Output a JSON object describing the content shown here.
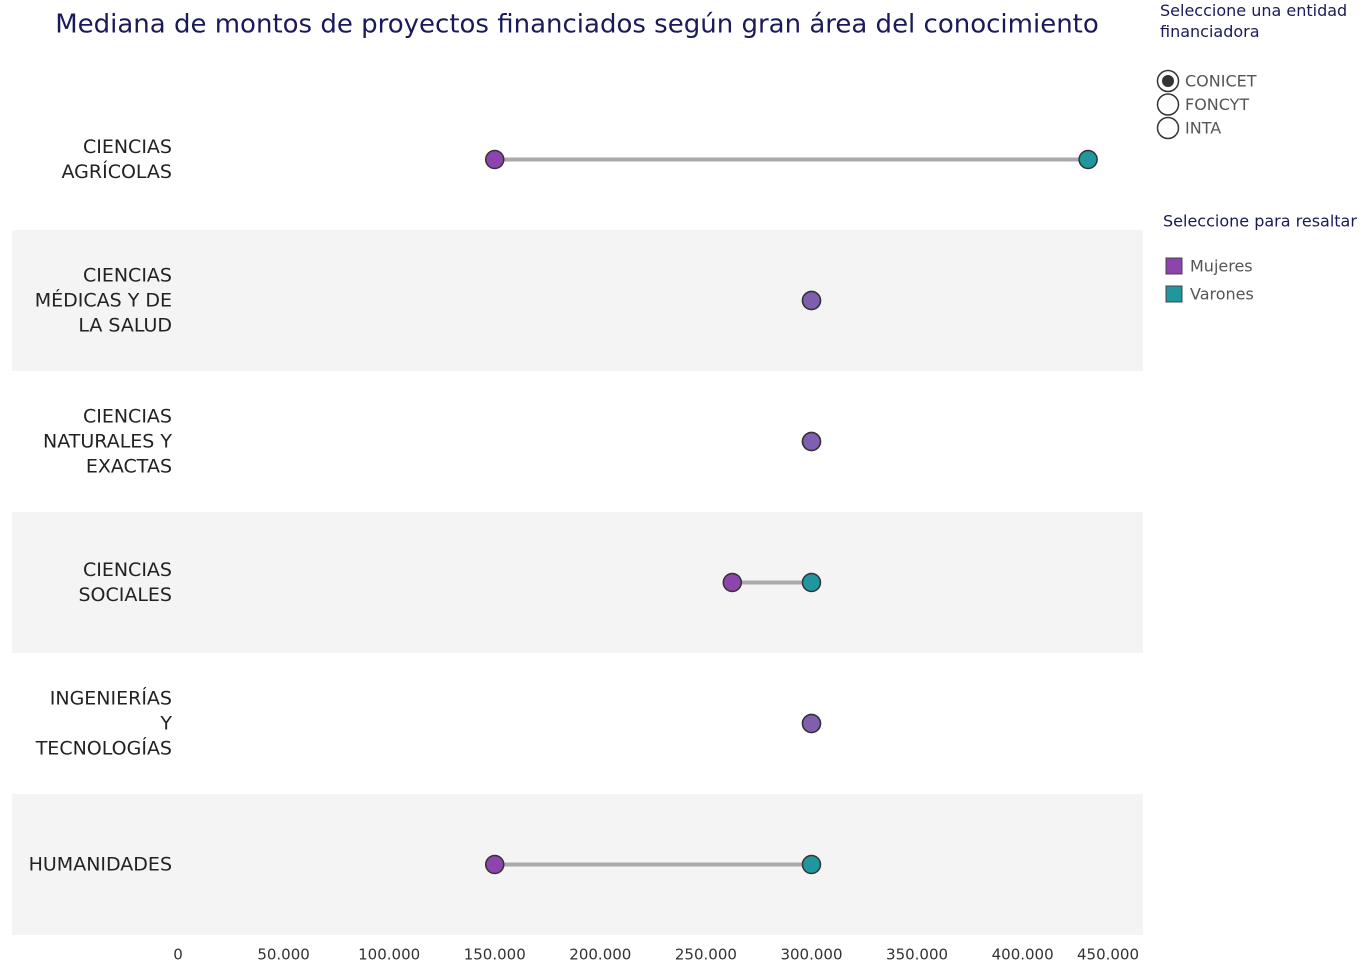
{
  "chart_data": {
    "type": "dumbbell",
    "title": "Mediana de montos de proyectos financiados según gran área del conocimiento",
    "categories": [
      "CIENCIAS\nAGRÍCOLAS",
      "CIENCIAS\nMÉDICAS Y DE\nLA SALUD",
      "CIENCIAS\nNATURALES Y\nEXACTAS",
      "CIENCIAS\nSOCIALES",
      "INGENIERÍAS\nY\nTECNOLOGÍAS",
      "HUMANIDADES"
    ],
    "series": [
      {
        "name": "Mujeres",
        "color": "#8e44ad",
        "values": [
          150000,
          300000,
          300000,
          262500,
          300000,
          150000
        ]
      },
      {
        "name": "Varones",
        "color": "#20969e",
        "values": [
          431000,
          300000,
          300000,
          300000,
          300000,
          300000
        ]
      }
    ],
    "connector_color": "#aaaaaa",
    "xlim": [
      0,
      457000
    ],
    "xticks": [
      0,
      {
        "value": 50000,
        "label": "50.000"
      },
      {
        "value": 100000,
        "label": "100.000"
      },
      {
        "value": 150000,
        "label": "150.000"
      },
      {
        "value": 200000,
        "label": "200.000"
      },
      {
        "value": 250000,
        "label": "250.000"
      },
      {
        "value": 300000,
        "label": "300.000"
      },
      {
        "value": 350000,
        "label": "350.000"
      },
      {
        "value": 400000,
        "label": "400.000"
      },
      {
        "value": 450000,
        "label": "450.000"
      }
    ],
    "legend_title": "Seleccione para resaltar"
  },
  "controls": {
    "title": "Seleccione una entidad financiadora",
    "options": [
      "CONICET",
      "FONCYT",
      "INTA"
    ],
    "selected": "CONICET"
  }
}
